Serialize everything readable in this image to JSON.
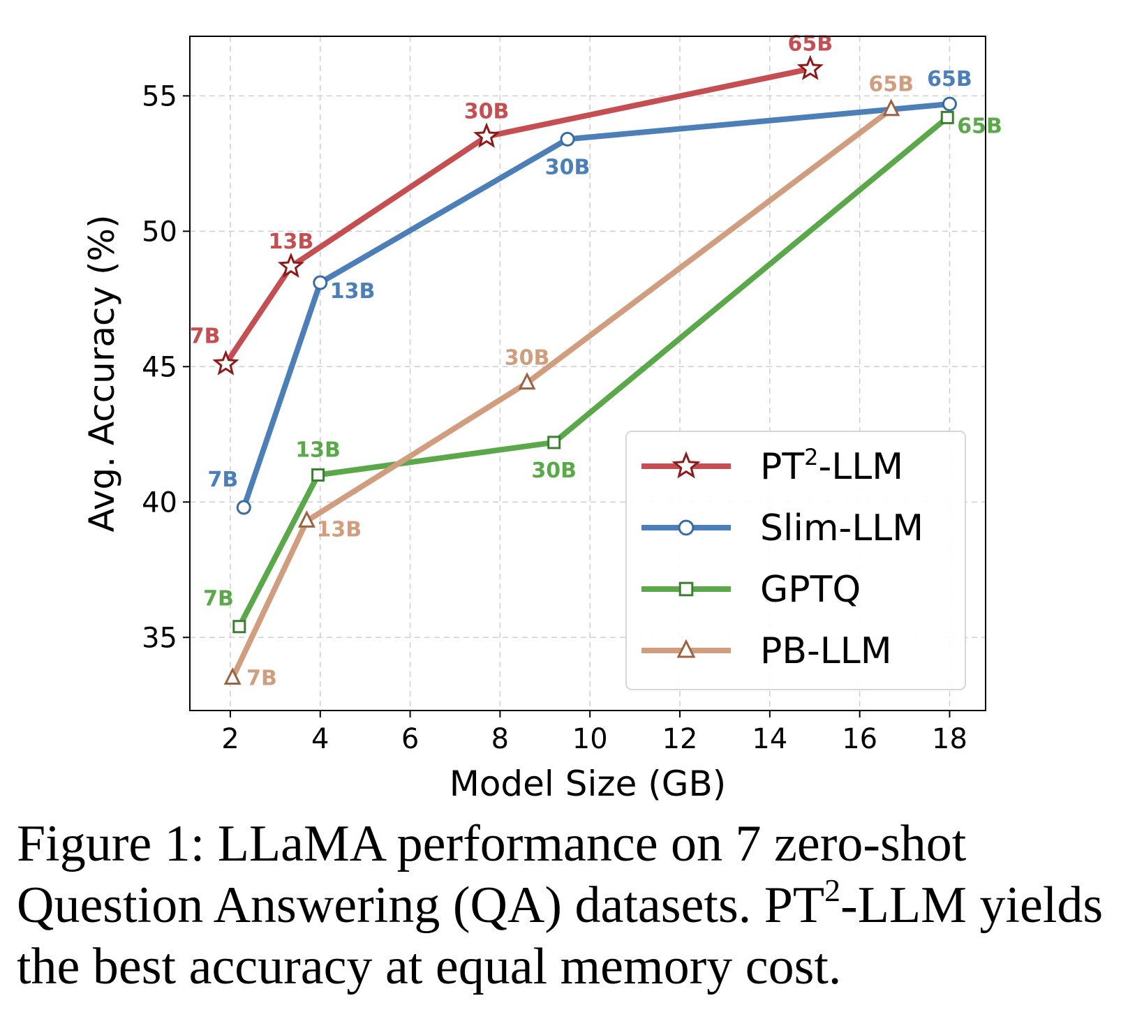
{
  "chart_data": {
    "type": "line",
    "xlabel": "Model Size (GB)",
    "ylabel": "Avg. Accuracy (%)",
    "xlim": [
      1.1,
      18.8
    ],
    "ylim": [
      32.3,
      57.2
    ],
    "xticks": [
      2,
      4,
      6,
      8,
      10,
      12,
      14,
      16,
      18
    ],
    "yticks": [
      35,
      40,
      45,
      50,
      55
    ],
    "grid": true,
    "legend_position": "lower-right",
    "series": [
      {
        "name_main": "PT",
        "name_sup": "2",
        "name_rest": "-LLM",
        "color": "#c44e52",
        "marker": "star",
        "marker_color": "#8b1a1a",
        "points": [
          {
            "x": 1.9,
            "y": 45.1,
            "label": "7B",
            "label_pos": "top-left"
          },
          {
            "x": 3.35,
            "y": 48.7,
            "label": "13B",
            "label_pos": "top"
          },
          {
            "x": 7.7,
            "y": 53.5,
            "label": "30B",
            "label_pos": "top"
          },
          {
            "x": 14.9,
            "y": 56.0,
            "label": "65B",
            "label_pos": "top"
          }
        ]
      },
      {
        "name_main": "Slim-LLM",
        "color": "#4c7fb8",
        "marker": "circle",
        "marker_color": "#3a6aa3",
        "points": [
          {
            "x": 2.3,
            "y": 39.8,
            "label": "7B",
            "label_pos": "top-left"
          },
          {
            "x": 4.0,
            "y": 48.1,
            "label": "13B",
            "label_pos": "bottom-right"
          },
          {
            "x": 9.5,
            "y": 53.4,
            "label": "30B",
            "label_pos": "bottom"
          },
          {
            "x": 18.0,
            "y": 54.7,
            "label": "65B",
            "label_pos": "top"
          }
        ]
      },
      {
        "name_main": "GPTQ",
        "color": "#5ba84b",
        "marker": "square",
        "marker_color": "#3c7e31",
        "points": [
          {
            "x": 2.2,
            "y": 35.4,
            "label": "7B",
            "label_pos": "top-left"
          },
          {
            "x": 3.95,
            "y": 41.0,
            "label": "13B",
            "label_pos": "top"
          },
          {
            "x": 9.2,
            "y": 42.2,
            "label": "30B",
            "label_pos": "bottom"
          },
          {
            "x": 17.95,
            "y": 54.2,
            "label": "65B",
            "label_pos": "bottom-right"
          }
        ]
      },
      {
        "name_main": "PB-LLM",
        "color": "#d09e7f",
        "marker": "triangle",
        "marker_color": "#9a6240",
        "points": [
          {
            "x": 2.05,
            "y": 33.5,
            "label": "7B",
            "label_pos": "right"
          },
          {
            "x": 3.7,
            "y": 39.3,
            "label": "13B",
            "label_pos": "bottom-right"
          },
          {
            "x": 8.6,
            "y": 44.4,
            "label": "30B",
            "label_pos": "top"
          },
          {
            "x": 16.7,
            "y": 54.5,
            "label": "65B",
            "label_pos": "top"
          }
        ]
      }
    ]
  },
  "caption": {
    "prefix": "Figure 1: LLaMA performance on 7 zero-shot Question Answering (QA) datasets. PT",
    "sup": "2",
    "suffix": "-LLM yields the best accuracy at equal memory cost."
  }
}
